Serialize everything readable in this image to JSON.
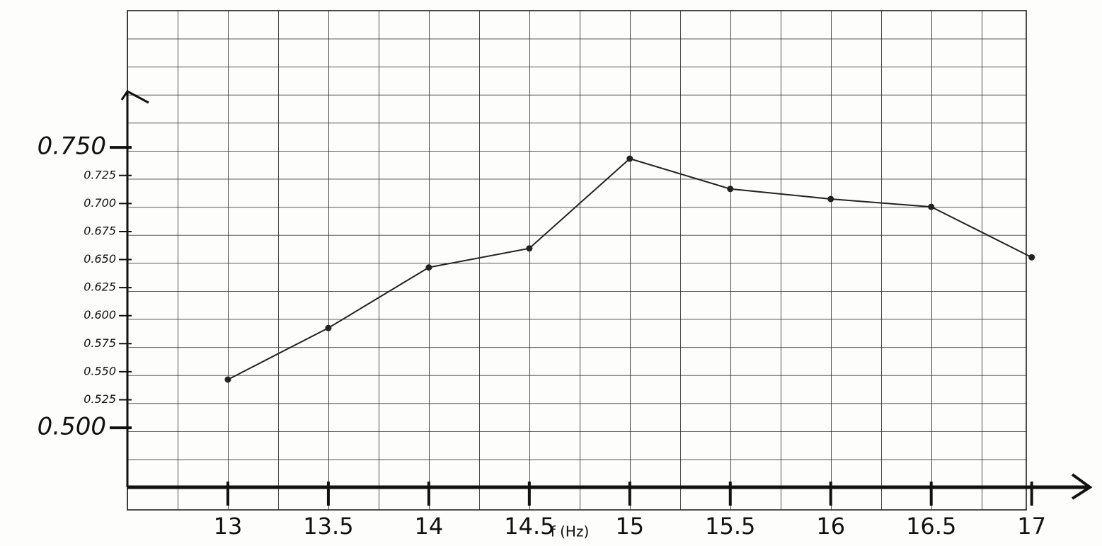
{
  "chart_data": {
    "type": "line",
    "xlabel": "f (Hz)",
    "x": [
      13,
      13.5,
      14,
      14.5,
      15,
      15.5,
      16,
      16.5,
      17
    ],
    "series": [
      {
        "color": "#222222",
        "values": [
          0.543,
          0.589,
          0.643,
          0.66,
          0.74,
          0.713,
          0.704,
          0.697,
          0.652
        ]
      }
    ],
    "xlim": [
      12.5,
      17.29
    ],
    "xticks": [
      13,
      13.5,
      14,
      14.5,
      15,
      15.5,
      16,
      16.5,
      17
    ],
    "ylim": [
      0.447,
      0.8
    ],
    "yticks": [
      {
        "value": 0.5,
        "label": "0.500"
      },
      {
        "value": 0.525,
        "label": "0.525"
      },
      {
        "value": 0.55,
        "label": "0.550"
      },
      {
        "value": 0.575,
        "label": "0.575"
      },
      {
        "value": 0.6,
        "label": "0.600"
      },
      {
        "value": 0.625,
        "label": "0.625"
      },
      {
        "value": 0.65,
        "label": "0.650"
      },
      {
        "value": 0.675,
        "label": "0.675"
      },
      {
        "value": 0.7,
        "label": "0.700"
      },
      {
        "value": 0.725,
        "label": "0.725"
      },
      {
        "value": 0.75,
        "label": "0.750"
      }
    ]
  }
}
